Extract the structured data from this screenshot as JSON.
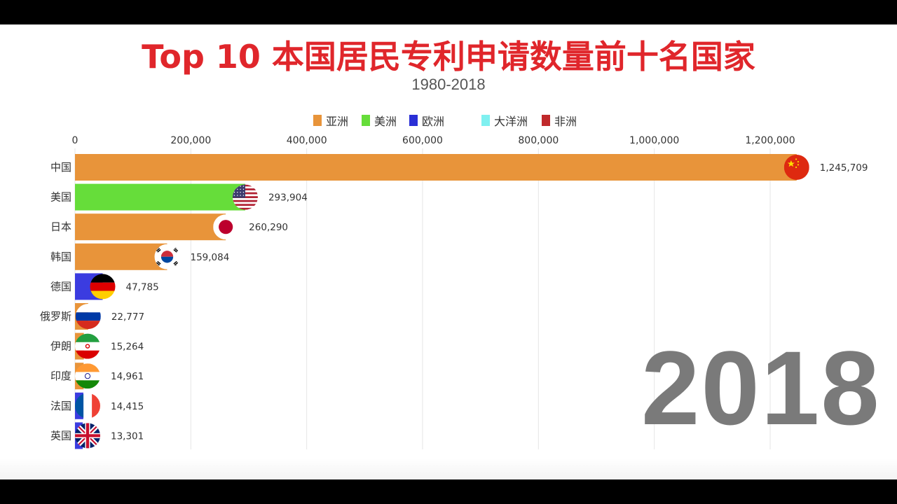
{
  "chart_data": {
    "type": "bar",
    "title": "Top 10 本国居民专利申请数量前十名国家",
    "subtitle": "1980-2018",
    "year": "2018",
    "legend": [
      {
        "label": "亚洲",
        "color": "#e8943a"
      },
      {
        "label": "美洲",
        "color": "#66dd3a"
      },
      {
        "label": "欧洲",
        "color": "#2a2fd6"
      },
      {
        "label": "大洋洲",
        "color": "#7ff0f0"
      },
      {
        "label": "非洲",
        "color": "#c0292b"
      }
    ],
    "xlim": [
      0,
      1300000
    ],
    "x_ticks": [
      {
        "value": 0,
        "label": "0"
      },
      {
        "value": 200000,
        "label": "200,000"
      },
      {
        "value": 400000,
        "label": "400,000"
      },
      {
        "value": 600000,
        "label": "600,000"
      },
      {
        "value": 800000,
        "label": "800,000"
      },
      {
        "value": 1000000,
        "label": "1,000,000"
      },
      {
        "value": 1200000,
        "label": "1,200,000"
      }
    ],
    "categories": [
      "中国",
      "美国",
      "日本",
      "韩国",
      "德国",
      "俄罗斯",
      "伊朗",
      "印度",
      "法国",
      "英国"
    ],
    "values": [
      1245709,
      293904,
      260290,
      159084,
      47785,
      22777,
      15264,
      14961,
      14415,
      13301
    ],
    "value_labels": [
      "1,245,709",
      "293,904",
      "260,290",
      "159,084",
      "47,785",
      "22,777",
      "15,264",
      "14,961",
      "14,415",
      "13,301"
    ],
    "colors": [
      "#e8943a",
      "#66dd3a",
      "#e8943a",
      "#e8943a",
      "#3b3ce0",
      "#e8943a",
      "#e8943a",
      "#e8943a",
      "#3b3ce0",
      "#3b3ce0"
    ],
    "flags": [
      "china-flag-icon",
      "usa-flag-icon",
      "japan-flag-icon",
      "korea-flag-icon",
      "germany-flag-icon",
      "russia-flag-icon",
      "iran-flag-icon",
      "india-flag-icon",
      "france-flag-icon",
      "uk-flag-icon"
    ],
    "grid": true,
    "legend_position": "top-center"
  }
}
